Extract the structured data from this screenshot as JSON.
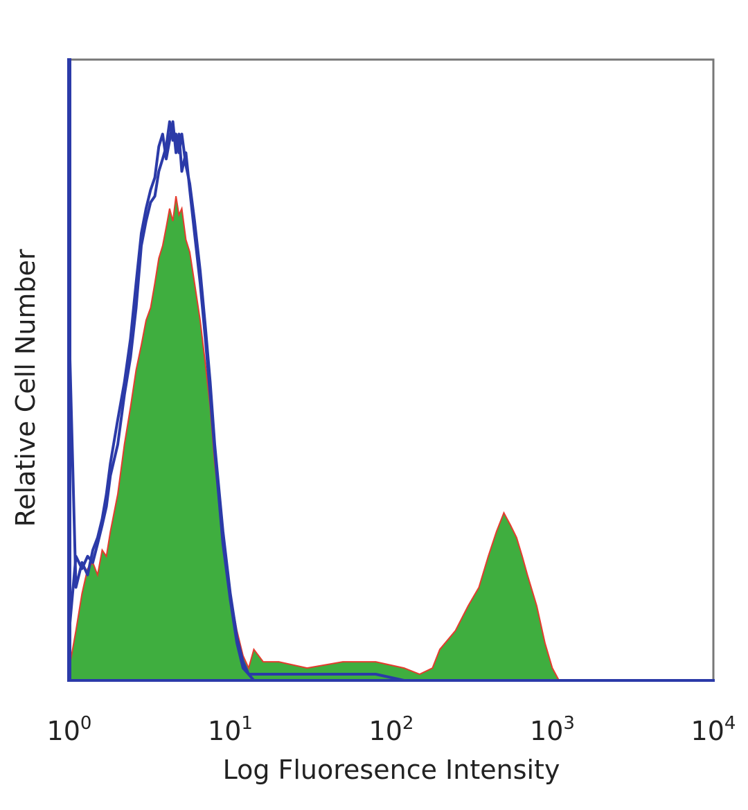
{
  "chart_data": {
    "type": "area",
    "title": "",
    "xlabel": "Log Fluoresence Intensity",
    "ylabel": "Relative Cell Number",
    "x_scale": "log",
    "xlim": [
      1,
      10000
    ],
    "ylim": [
      0,
      100
    ],
    "x_ticks": [
      {
        "base": "10",
        "exp": "0"
      },
      {
        "base": "10",
        "exp": "1"
      },
      {
        "base": "10",
        "exp": "2"
      },
      {
        "base": "10",
        "exp": "3"
      },
      {
        "base": "10",
        "exp": "4"
      }
    ],
    "grid": false,
    "legend": "none",
    "series": [
      {
        "style": "filled",
        "color": "#3fae3f",
        "edge_color": "#e53b2e",
        "x": [
          1.0,
          1.1,
          1.2,
          1.3,
          1.4,
          1.5,
          1.6,
          1.7,
          1.8,
          2.0,
          2.2,
          2.4,
          2.6,
          2.8,
          3.0,
          3.2,
          3.4,
          3.6,
          3.8,
          4.0,
          4.2,
          4.4,
          4.6,
          4.8,
          5.0,
          5.3,
          5.6,
          6.0,
          6.5,
          7.0,
          7.5,
          8.0,
          9.0,
          10.0,
          11.0,
          12.0,
          13.0,
          14.0,
          16.0,
          20.0,
          30.0,
          50.0,
          80.0,
          120.0,
          150.0,
          180.0,
          200.0,
          250.0,
          300.0,
          350.0,
          400.0,
          450.0,
          500.0,
          550.0,
          600.0,
          650.0,
          700.0,
          800.0,
          900.0,
          1000.0,
          1100.0,
          1150.0,
          10000.0
        ],
        "y": [
          2,
          8,
          14,
          18,
          19,
          17,
          21,
          20,
          24,
          30,
          38,
          44,
          50,
          54,
          58,
          60,
          64,
          68,
          70,
          73,
          76,
          74,
          78,
          75,
          76,
          71,
          69,
          64,
          58,
          51,
          44,
          35,
          23,
          14,
          8,
          4,
          2,
          5,
          3,
          3,
          2,
          3,
          3,
          2,
          1,
          2,
          5,
          8,
          12,
          15,
          20,
          24,
          27,
          25,
          23,
          20,
          17,
          12,
          6,
          2,
          0,
          0,
          0
        ]
      },
      {
        "style": "outline",
        "color": "#2b3aa8",
        "x": [
          1.0,
          1.1,
          1.2,
          1.3,
          1.4,
          1.5,
          1.6,
          1.7,
          1.8,
          2.0,
          2.2,
          2.4,
          2.6,
          2.8,
          3.0,
          3.2,
          3.4,
          3.6,
          3.8,
          4.0,
          4.2,
          4.4,
          4.6,
          4.8,
          5.0,
          5.3,
          5.6,
          6.0,
          6.5,
          7.0,
          7.5,
          8.0,
          9.0,
          10.0,
          11.0,
          12.0,
          13.0,
          14.0,
          16.0,
          20.0,
          30.0,
          50.0,
          80.0,
          120.0,
          150.0,
          180.0,
          200.0,
          300.0,
          500.0,
          700.0,
          1000.0,
          10000.0
        ],
        "y": [
          8,
          20,
          18,
          20,
          19,
          22,
          25,
          28,
          33,
          38,
          46,
          52,
          60,
          70,
          74,
          77,
          78,
          82,
          84,
          86,
          90,
          87,
          88,
          85,
          88,
          83,
          80,
          74,
          66,
          57,
          48,
          38,
          24,
          14,
          7,
          3,
          1,
          1,
          1,
          1,
          1,
          1,
          1,
          0,
          0,
          0,
          0,
          0,
          0,
          0,
          0,
          0
        ]
      },
      {
        "style": "outline",
        "color": "#2b3aa8",
        "x": [
          1.0,
          1.1,
          1.2,
          1.3,
          1.4,
          1.5,
          1.6,
          1.7,
          1.8,
          2.0,
          2.2,
          2.4,
          2.6,
          2.8,
          3.0,
          3.2,
          3.4,
          3.6,
          3.8,
          4.0,
          4.2,
          4.4,
          4.6,
          4.8,
          5.0,
          5.3,
          5.6,
          6.0,
          6.5,
          7.0,
          7.5,
          8.0,
          9.0,
          10.0,
          11.0,
          12.0,
          13.0,
          14.0,
          16.0,
          20.0,
          30.0,
          100.0,
          1000.0,
          10000.0
        ],
        "y": [
          56,
          15,
          19,
          17,
          21,
          23,
          26,
          30,
          35,
          42,
          48,
          55,
          64,
          72,
          76,
          79,
          81,
          86,
          88,
          84,
          87,
          90,
          85,
          88,
          82,
          85,
          79,
          72,
          64,
          55,
          46,
          37,
          22,
          13,
          6,
          2,
          1,
          0,
          0,
          0,
          0,
          0,
          0,
          0
        ]
      }
    ]
  }
}
